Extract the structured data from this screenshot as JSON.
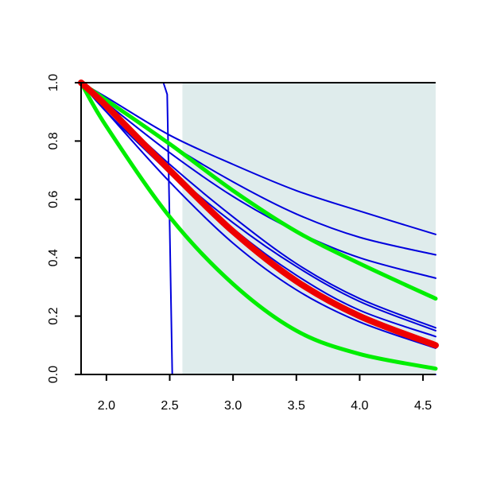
{
  "chart_data": {
    "type": "line",
    "title": "",
    "xlabel": "",
    "ylabel": "",
    "xlim": [
      1.8,
      4.6
    ],
    "ylim": [
      0.0,
      1.0
    ],
    "xticks": [
      "2.0",
      "2.5",
      "3.0",
      "3.5",
      "4.0",
      "4.5"
    ],
    "xtick_values": [
      2.0,
      2.5,
      3.0,
      3.5,
      4.0,
      4.5
    ],
    "yticks": [
      "0.0",
      "0.2",
      "0.4",
      "0.6",
      "0.8",
      "1.0"
    ],
    "ytick_values": [
      0.0,
      0.2,
      0.4,
      0.6,
      0.8,
      1.0
    ],
    "grid": false,
    "shaded_region": {
      "x_start": 2.6,
      "x_end": 4.6,
      "color": "#dfecec"
    },
    "colors": {
      "blue": "#0000dd",
      "green": "#00ee00",
      "red": "#ee0000",
      "shade": "#dfecec"
    },
    "series": [
      {
        "color": "#0000dd",
        "width": "thin",
        "x": [
          1.8,
          2.45,
          2.48,
          2.5,
          2.52,
          4.6
        ],
        "y": [
          1.0,
          1.0,
          0.96,
          0.5,
          0.0,
          0.0
        ]
      },
      {
        "color": "#0000dd",
        "width": "thin",
        "x": [
          1.8,
          2.0,
          2.5,
          3.0,
          3.5,
          4.0,
          4.6
        ],
        "y": [
          1.0,
          0.95,
          0.82,
          0.72,
          0.63,
          0.56,
          0.48
        ]
      },
      {
        "color": "#0000dd",
        "width": "thin",
        "x": [
          1.8,
          2.0,
          2.5,
          3.0,
          3.5,
          4.0,
          4.6
        ],
        "y": [
          1.0,
          0.94,
          0.79,
          0.66,
          0.55,
          0.47,
          0.41
        ]
      },
      {
        "color": "#0000dd",
        "width": "thin",
        "x": [
          1.8,
          2.0,
          2.5,
          3.0,
          3.5,
          4.0,
          4.6
        ],
        "y": [
          1.0,
          0.93,
          0.76,
          0.61,
          0.49,
          0.4,
          0.33
        ]
      },
      {
        "color": "#0000dd",
        "width": "thin",
        "x": [
          1.8,
          2.0,
          2.5,
          3.0,
          3.5,
          4.0,
          4.6
        ],
        "y": [
          1.0,
          0.92,
          0.72,
          0.54,
          0.38,
          0.26,
          0.16
        ]
      },
      {
        "color": "#0000dd",
        "width": "thin",
        "x": [
          1.8,
          2.0,
          2.5,
          3.0,
          3.5,
          4.0,
          4.6
        ],
        "y": [
          1.0,
          0.91,
          0.7,
          0.52,
          0.37,
          0.25,
          0.15
        ]
      },
      {
        "color": "#0000dd",
        "width": "thin",
        "x": [
          1.8,
          2.0,
          2.5,
          3.0,
          3.5,
          4.0,
          4.6
        ],
        "y": [
          1.0,
          0.91,
          0.7,
          0.5,
          0.34,
          0.22,
          0.13
        ]
      },
      {
        "color": "#0000dd",
        "width": "thin",
        "x": [
          1.8,
          2.0,
          2.5,
          3.0,
          3.5,
          4.0,
          4.6
        ],
        "y": [
          1.0,
          0.9,
          0.69,
          0.49,
          0.32,
          0.2,
          0.1
        ]
      },
      {
        "color": "#0000dd",
        "width": "thin",
        "x": [
          1.8,
          2.0,
          2.5,
          3.0,
          3.5,
          4.0,
          4.6
        ],
        "y": [
          1.0,
          0.9,
          0.66,
          0.45,
          0.29,
          0.18,
          0.09
        ]
      },
      {
        "color": "#00ee00",
        "width": "thick",
        "x": [
          1.8,
          2.0,
          2.5,
          3.0,
          3.5,
          4.0,
          4.6
        ],
        "y": [
          1.0,
          0.94,
          0.79,
          0.63,
          0.49,
          0.38,
          0.26
        ]
      },
      {
        "color": "#00ee00",
        "width": "thick",
        "x": [
          1.8,
          2.0,
          2.5,
          3.0,
          3.5,
          4.0,
          4.6
        ],
        "y": [
          1.0,
          0.85,
          0.54,
          0.31,
          0.15,
          0.07,
          0.02
        ]
      },
      {
        "color": "#ee0000",
        "width": "thicker",
        "x": [
          1.8,
          2.0,
          2.5,
          3.0,
          3.5,
          4.0,
          4.6
        ],
        "y": [
          1.0,
          0.92,
          0.7,
          0.49,
          0.32,
          0.2,
          0.1
        ]
      }
    ]
  }
}
